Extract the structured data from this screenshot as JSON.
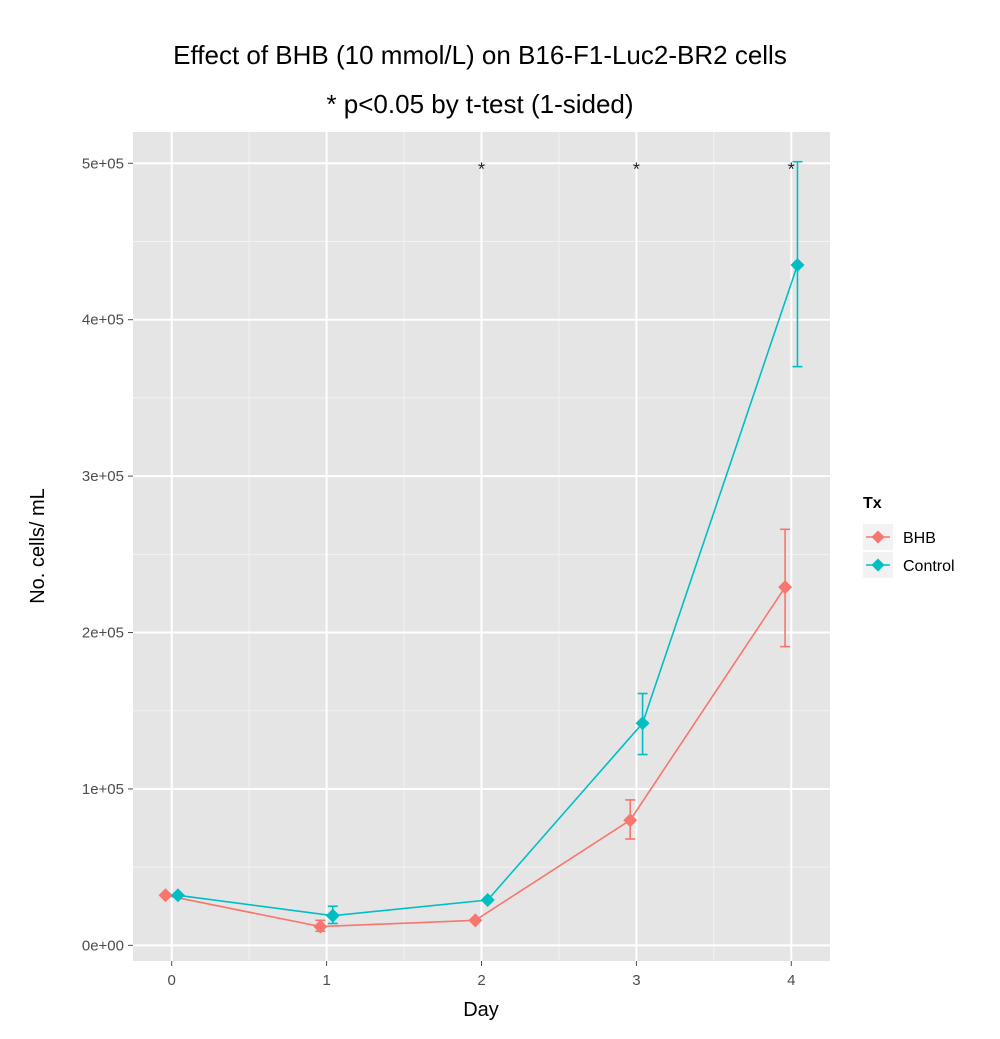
{
  "chart_data": {
    "type": "line",
    "title": "Effect of BHB (10 mmol/L) on B16-F1-Luc2-BR2 cells",
    "subtitle": "* p<0.05 by t-test (1-sided)",
    "xlabel": "Day",
    "ylabel": "No. cells/ mL",
    "x": [
      0,
      1,
      2,
      3,
      4
    ],
    "x_tick_labels": [
      "0",
      "1",
      "2",
      "3",
      "4"
    ],
    "y_ticks": [
      0,
      100000,
      200000,
      300000,
      400000,
      500000
    ],
    "y_tick_labels": [
      "0e+00",
      "1e+05",
      "2e+05",
      "3e+05",
      "4e+05",
      "5e+05"
    ],
    "xlim": [
      -0.25,
      4.25
    ],
    "ylim": [
      -10000,
      520000
    ],
    "grid": true,
    "legend_title": "Tx",
    "legend_position": "right",
    "series": [
      {
        "name": "BHB",
        "color": "#f8766d",
        "values": [
          32000,
          12000,
          16000,
          80000,
          229000
        ],
        "error_low": [
          32000,
          9000,
          16000,
          68000,
          191000
        ],
        "error_high": [
          32000,
          16000,
          16000,
          93000,
          266000
        ]
      },
      {
        "name": "Control",
        "color": "#00bfc4",
        "values": [
          32000,
          19000,
          29000,
          142000,
          435000
        ],
        "error_low": [
          32000,
          14000,
          29000,
          122000,
          370000
        ],
        "error_high": [
          32000,
          25000,
          29000,
          161000,
          501000
        ]
      }
    ],
    "annotations": [
      {
        "x": 2,
        "y": 500000,
        "text": "*"
      },
      {
        "x": 3,
        "y": 500000,
        "text": "*"
      },
      {
        "x": 4,
        "y": 500000,
        "text": "*"
      }
    ]
  }
}
